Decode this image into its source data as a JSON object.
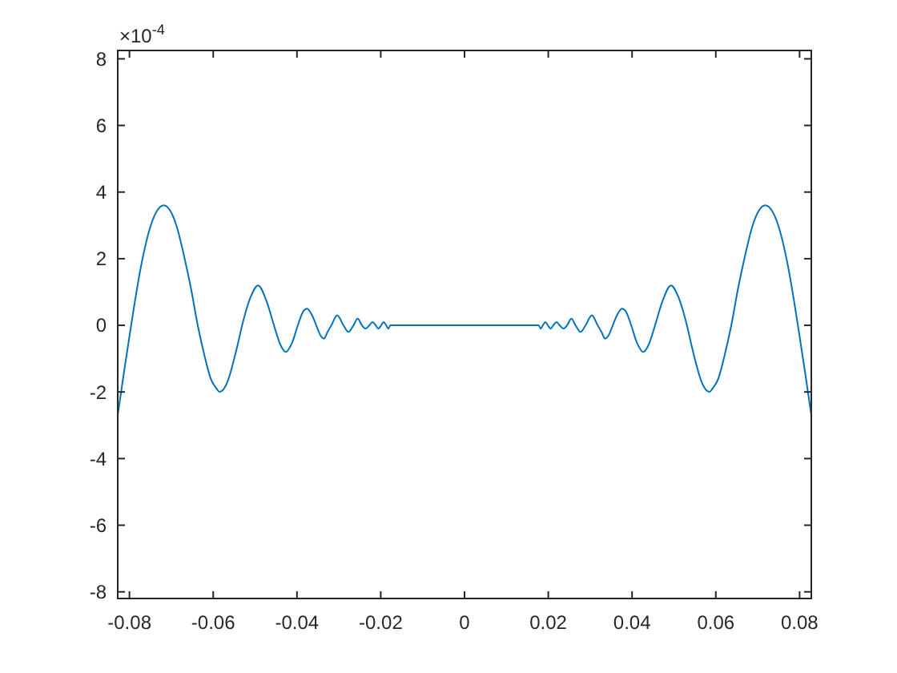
{
  "chart_data": {
    "type": "line",
    "annotations": [
      "×10$^{-4}$"
    ],
    "x": [
      -0.0828,
      -0.0813,
      -0.0796,
      -0.0772,
      -0.0749,
      -0.0718,
      -0.0688,
      -0.067,
      -0.0653,
      -0.0637,
      -0.0621,
      -0.0606,
      -0.0592,
      -0.0585,
      -0.0566,
      -0.0554,
      -0.0542,
      -0.0531,
      -0.0509,
      -0.0493,
      -0.0472,
      -0.0455,
      -0.0439,
      -0.0427,
      -0.0411,
      -0.0398,
      -0.0386,
      -0.0376,
      -0.0364,
      -0.0354,
      -0.0344,
      -0.0336,
      -0.0327,
      -0.0318,
      -0.0304,
      -0.0289,
      -0.0277,
      -0.0265,
      -0.0255,
      -0.0245,
      -0.0236,
      -0.0227,
      -0.022,
      -0.0212,
      -0.0206,
      -0.0199,
      -0.0193,
      -0.0187,
      -0.0182,
      -0.0177,
      0,
      0.0177,
      0.0182,
      0.0187,
      0.0193,
      0.0199,
      0.0206,
      0.0212,
      0.022,
      0.0227,
      0.0236,
      0.0245,
      0.0255,
      0.0265,
      0.0277,
      0.0289,
      0.0304,
      0.0318,
      0.0327,
      0.0336,
      0.0344,
      0.0354,
      0.0364,
      0.0376,
      0.0386,
      0.0398,
      0.0411,
      0.0427,
      0.0439,
      0.0455,
      0.0472,
      0.0493,
      0.0509,
      0.0531,
      0.0542,
      0.0554,
      0.0566,
      0.0585,
      0.0592,
      0.0606,
      0.0621,
      0.0637,
      0.0653,
      0.067,
      0.0688,
      0.0718,
      0.0749,
      0.0772,
      0.0796,
      0.0813,
      0.0828
    ],
    "series": [
      {
        "color": "#0072bd",
        "values": [
          -2.7,
          -1.4,
          0,
          1.8,
          3.0,
          3.6,
          3.0,
          2.1,
          1.1,
          0,
          -0.9,
          -1.6,
          -1.9,
          -2.0,
          -1.7,
          -1.2,
          -0.6,
          0,
          0.9,
          1.2,
          0.7,
          0,
          -0.6,
          -0.8,
          -0.5,
          0,
          0.4,
          0.5,
          0.3,
          0,
          -0.3,
          -0.4,
          -0.2,
          0,
          0.3,
          0,
          -0.2,
          0,
          0.2,
          0,
          -0.1,
          0,
          0.1,
          0,
          -0.1,
          0,
          0.1,
          0,
          -0.1,
          0,
          0,
          0,
          -0.1,
          0,
          0.1,
          0,
          -0.1,
          0,
          0.1,
          0,
          -0.1,
          0,
          0.2,
          0,
          -0.2,
          0,
          0.3,
          0,
          -0.2,
          -0.4,
          -0.3,
          0,
          0.3,
          0.5,
          0.4,
          0,
          -0.5,
          -0.8,
          -0.6,
          0,
          0.7,
          1.2,
          0.9,
          0,
          -0.6,
          -1.2,
          -1.7,
          -2.0,
          -1.9,
          -1.6,
          -0.9,
          0,
          1.1,
          2.1,
          3.0,
          3.6,
          3.0,
          1.8,
          0,
          -1.4,
          -2.7
        ]
      }
    ],
    "xlim": [
      -0.0828,
      0.0828
    ],
    "ylim": [
      -8.2,
      8.25
    ],
    "xticks": [
      -0.08,
      -0.06,
      -0.04,
      -0.02,
      0,
      0.02,
      0.04,
      0.06,
      0.08
    ],
    "yticks": [
      -8,
      -6,
      -4,
      -2,
      0,
      2,
      4,
      6,
      8
    ],
    "line_style": "solid"
  }
}
